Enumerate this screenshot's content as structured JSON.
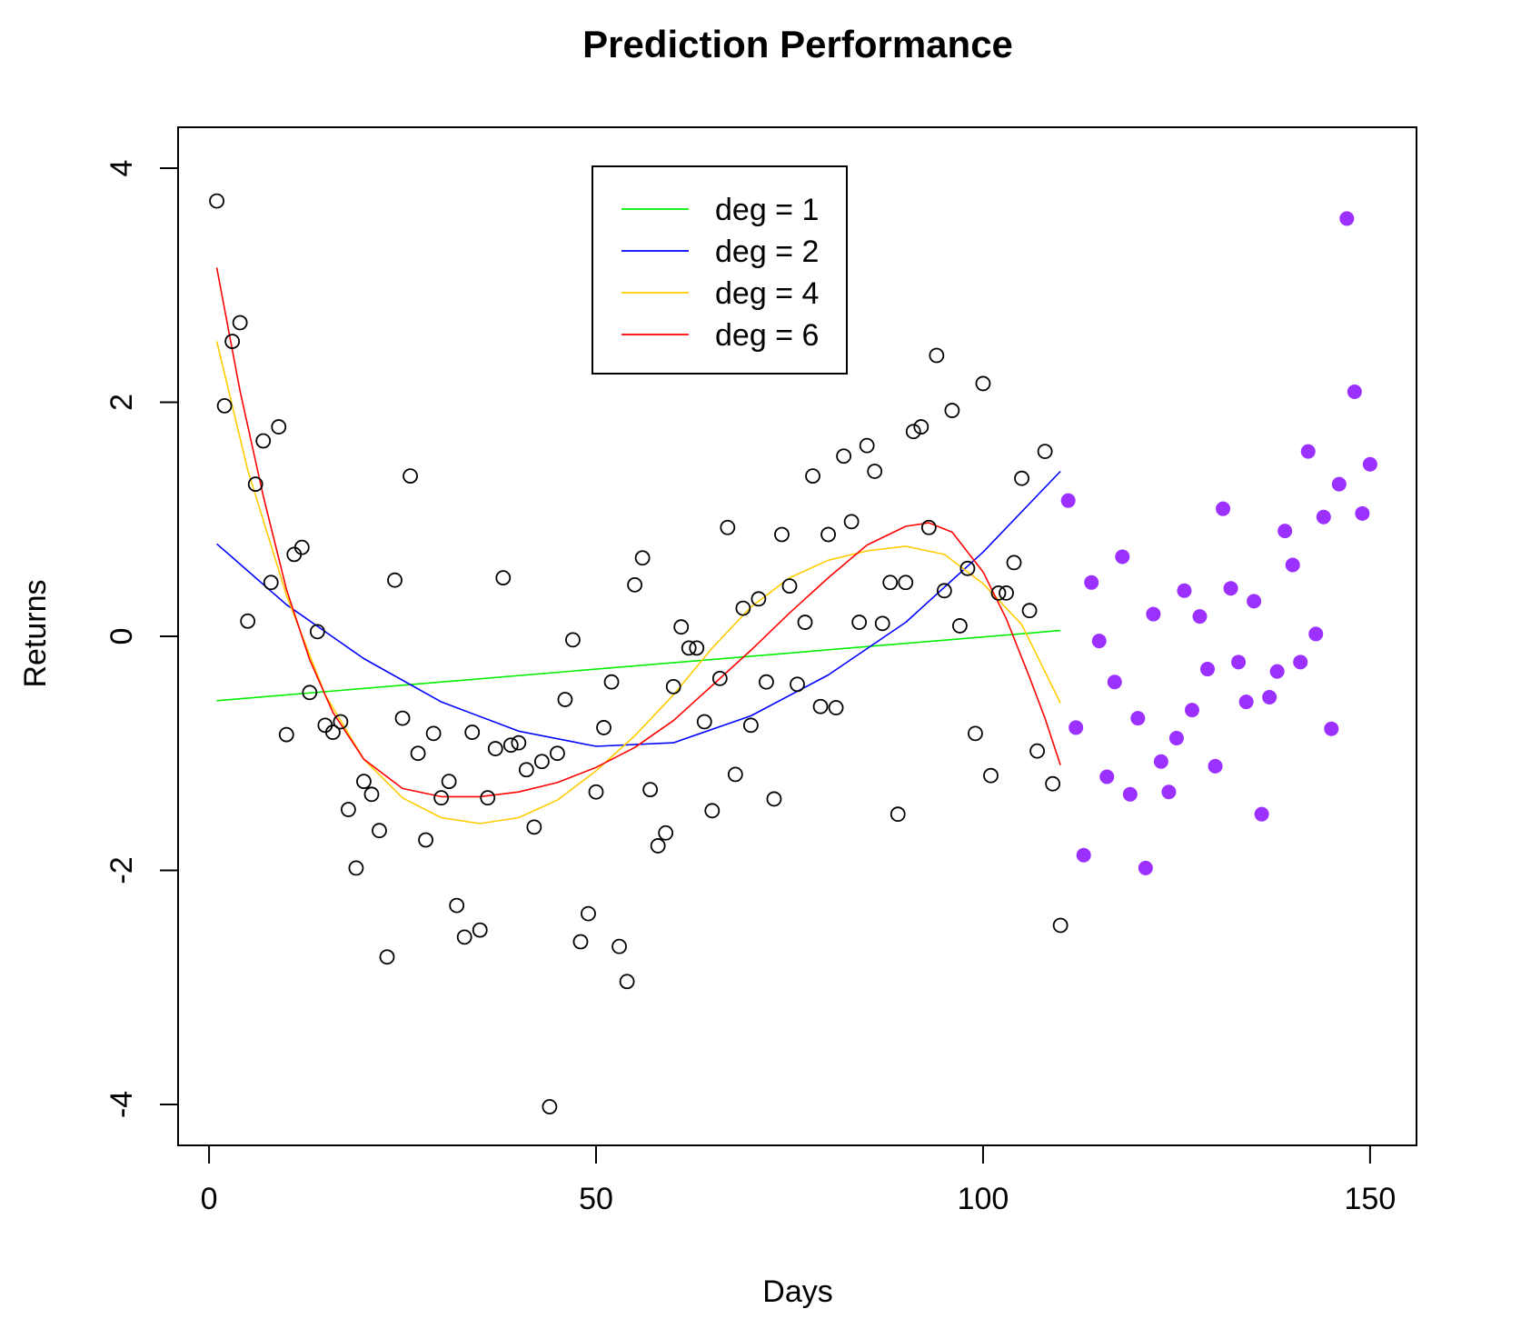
{
  "chart_data": {
    "type": "scatter",
    "title": "Prediction Performance",
    "xlabel": "Days",
    "ylabel": "Returns",
    "xlim": [
      -4,
      156
    ],
    "ylim": [
      -4.35,
      4.35
    ],
    "x_ticks": [
      0,
      50,
      100,
      150
    ],
    "y_ticks": [
      -4,
      -2,
      0,
      2,
      4
    ],
    "grid": false,
    "legend": {
      "position": "top-center",
      "entries": [
        {
          "label": "deg = 1",
          "color": "#00ee00"
        },
        {
          "label": "deg = 2",
          "color": "#0000ff"
        },
        {
          "label": "deg = 4",
          "color": "#ffcc00"
        },
        {
          "label": "deg = 6",
          "color": "#ff0000"
        }
      ]
    },
    "training_points": {
      "marker": "open-circle",
      "color": "#000000",
      "points": [
        [
          1,
          3.72
        ],
        [
          2,
          1.97
        ],
        [
          3,
          2.52
        ],
        [
          4,
          2.68
        ],
        [
          5,
          0.13
        ],
        [
          6,
          1.3
        ],
        [
          7,
          1.67
        ],
        [
          8,
          0.46
        ],
        [
          9,
          1.79
        ],
        [
          10,
          -0.84
        ],
        [
          11,
          0.7
        ],
        [
          12,
          0.76
        ],
        [
          13,
          -0.48
        ],
        [
          14,
          0.04
        ],
        [
          15,
          -0.76
        ],
        [
          16,
          -0.82
        ],
        [
          17,
          -0.73
        ],
        [
          18,
          -1.48
        ],
        [
          19,
          -1.98
        ],
        [
          20,
          -1.24
        ],
        [
          21,
          -1.35
        ],
        [
          22,
          -1.66
        ],
        [
          23,
          -2.74
        ],
        [
          24,
          0.48
        ],
        [
          25,
          -0.7
        ],
        [
          26,
          1.37
        ],
        [
          27,
          -1.0
        ],
        [
          28,
          -1.74
        ],
        [
          29,
          -0.83
        ],
        [
          30,
          -1.38
        ],
        [
          31,
          -1.24
        ],
        [
          32,
          -2.3
        ],
        [
          33,
          -2.57
        ],
        [
          34,
          -0.82
        ],
        [
          35,
          -2.51
        ],
        [
          36,
          -1.38
        ],
        [
          37,
          -0.96
        ],
        [
          38,
          0.5
        ],
        [
          39,
          -0.93
        ],
        [
          40,
          -0.91
        ],
        [
          41,
          -1.14
        ],
        [
          42,
          -1.63
        ],
        [
          43,
          -1.07
        ],
        [
          44,
          -4.02
        ],
        [
          45,
          -1.0
        ],
        [
          46,
          -0.54
        ],
        [
          47,
          -0.03
        ],
        [
          48,
          -2.61
        ],
        [
          49,
          -2.37
        ],
        [
          50,
          -1.33
        ],
        [
          51,
          -0.78
        ],
        [
          52,
          -0.39
        ],
        [
          53,
          -2.65
        ],
        [
          54,
          -2.95
        ],
        [
          55,
          0.44
        ],
        [
          56,
          0.67
        ],
        [
          57,
          -1.31
        ],
        [
          58,
          -1.79
        ],
        [
          59,
          -1.68
        ],
        [
          60,
          -0.43
        ],
        [
          61,
          0.08
        ],
        [
          62,
          -0.1
        ],
        [
          63,
          -0.1
        ],
        [
          64,
          -0.73
        ],
        [
          65,
          -1.49
        ],
        [
          66,
          -0.36
        ],
        [
          67,
          0.93
        ],
        [
          68,
          -1.18
        ],
        [
          69,
          0.24
        ],
        [
          70,
          -0.76
        ],
        [
          71,
          0.32
        ],
        [
          72,
          -0.39
        ],
        [
          73,
          -1.39
        ],
        [
          74,
          0.87
        ],
        [
          75,
          0.43
        ],
        [
          76,
          -0.41
        ],
        [
          77,
          0.12
        ],
        [
          78,
          1.37
        ],
        [
          79,
          -0.6
        ],
        [
          80,
          0.87
        ],
        [
          81,
          -0.61
        ],
        [
          82,
          1.54
        ],
        [
          83,
          0.98
        ],
        [
          84,
          0.12
        ],
        [
          85,
          1.63
        ],
        [
          86,
          1.41
        ],
        [
          87,
          0.11
        ],
        [
          88,
          0.46
        ],
        [
          89,
          -1.52
        ],
        [
          90,
          0.46
        ],
        [
          91,
          1.75
        ],
        [
          92,
          1.79
        ],
        [
          93,
          0.93
        ],
        [
          94,
          2.4
        ],
        [
          95,
          0.39
        ],
        [
          96,
          1.93
        ],
        [
          97,
          0.09
        ],
        [
          98,
          0.58
        ],
        [
          99,
          -0.83
        ],
        [
          100,
          2.16
        ],
        [
          101,
          -1.19
        ],
        [
          102,
          0.37
        ],
        [
          103,
          0.37
        ],
        [
          104,
          0.63
        ],
        [
          105,
          1.35
        ],
        [
          106,
          0.22
        ],
        [
          107,
          -0.98
        ],
        [
          108,
          1.58
        ],
        [
          109,
          -1.26
        ],
        [
          110,
          -2.47
        ]
      ]
    },
    "test_points": {
      "marker": "filled-circle",
      "color": "#9b30ff",
      "points": [
        [
          111,
          1.16
        ],
        [
          112,
          -0.78
        ],
        [
          113,
          -1.87
        ],
        [
          114,
          0.46
        ],
        [
          115,
          -0.04
        ],
        [
          116,
          -1.2
        ],
        [
          117,
          -0.39
        ],
        [
          118,
          0.68
        ],
        [
          119,
          -1.35
        ],
        [
          120,
          -0.7
        ],
        [
          121,
          -1.98
        ],
        [
          122,
          0.19
        ],
        [
          123,
          -1.07
        ],
        [
          124,
          -1.33
        ],
        [
          125,
          -0.87
        ],
        [
          126,
          0.39
        ],
        [
          127,
          -0.63
        ],
        [
          128,
          0.17
        ],
        [
          129,
          -0.28
        ],
        [
          130,
          -1.11
        ],
        [
          131,
          1.09
        ],
        [
          132,
          0.41
        ],
        [
          133,
          -0.22
        ],
        [
          134,
          -0.56
        ],
        [
          135,
          0.3
        ],
        [
          136,
          -1.52
        ],
        [
          137,
          -0.52
        ],
        [
          138,
          -0.3
        ],
        [
          139,
          0.9
        ],
        [
          140,
          0.61
        ],
        [
          141,
          -0.22
        ],
        [
          142,
          1.58
        ],
        [
          143,
          0.02
        ],
        [
          144,
          1.02
        ],
        [
          145,
          -0.79
        ],
        [
          146,
          1.3
        ],
        [
          147,
          3.57
        ],
        [
          148,
          2.09
        ],
        [
          149,
          1.05
        ],
        [
          150,
          1.47
        ]
      ]
    },
    "series": [
      {
        "name": "deg = 1",
        "color": "#00ee00",
        "x": [
          1,
          110
        ],
        "y": [
          -0.55,
          0.05
        ]
      },
      {
        "name": "deg = 2",
        "color": "#0000ff",
        "x": [
          1,
          10,
          20,
          30,
          40,
          50,
          60,
          70,
          80,
          90,
          100,
          110
        ],
        "y": [
          0.79,
          0.27,
          -0.19,
          -0.56,
          -0.81,
          -0.94,
          -0.91,
          -0.68,
          -0.33,
          0.12,
          0.72,
          1.41
        ]
      },
      {
        "name": "deg = 4",
        "color": "#ffcc00",
        "x": [
          1,
          5,
          10,
          15,
          20,
          25,
          30,
          35,
          40,
          45,
          50,
          55,
          60,
          65,
          70,
          75,
          80,
          85,
          90,
          95,
          100,
          105,
          110
        ],
        "y": [
          2.52,
          1.42,
          0.35,
          -0.5,
          -1.05,
          -1.38,
          -1.55,
          -1.6,
          -1.55,
          -1.4,
          -1.15,
          -0.85,
          -0.5,
          -0.1,
          0.25,
          0.5,
          0.65,
          0.73,
          0.77,
          0.7,
          0.45,
          0.1,
          -0.57
        ]
      },
      {
        "name": "deg = 6",
        "color": "#ff0000",
        "x": [
          1,
          4,
          7,
          10,
          13,
          16,
          20,
          25,
          30,
          35,
          40,
          45,
          50,
          55,
          60,
          65,
          70,
          75,
          80,
          85,
          90,
          93,
          96,
          100,
          103,
          106,
          108,
          110
        ],
        "y": [
          3.15,
          2.1,
          1.2,
          0.4,
          -0.2,
          -0.65,
          -1.05,
          -1.3,
          -1.37,
          -1.37,
          -1.33,
          -1.25,
          -1.12,
          -0.95,
          -0.72,
          -0.42,
          -0.12,
          0.2,
          0.5,
          0.78,
          0.94,
          0.97,
          0.89,
          0.55,
          0.15,
          -0.35,
          -0.7,
          -1.1
        ]
      }
    ]
  }
}
